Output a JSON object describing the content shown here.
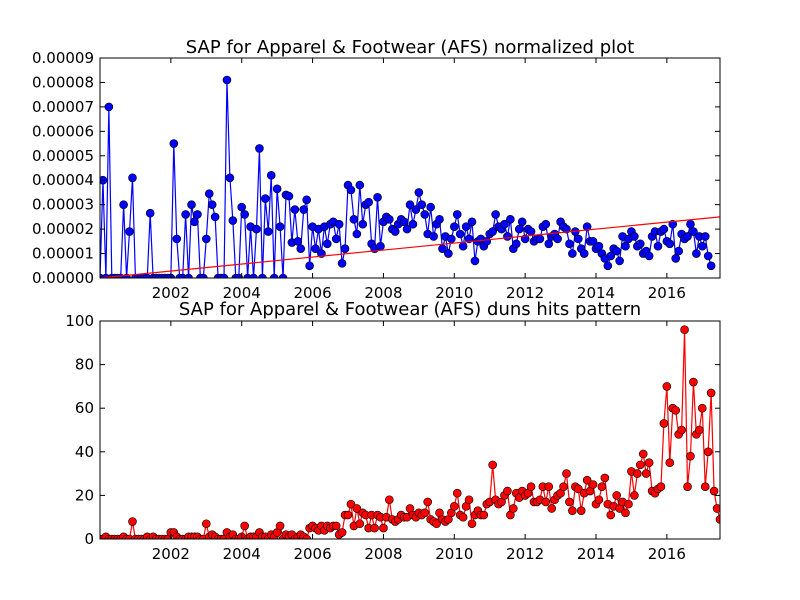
{
  "chart_data": [
    {
      "type": "line",
      "title": "SAP for Apparel & Footwear (AFS) normalized plot",
      "xlabel": "",
      "ylabel": "",
      "xlim": [
        2000.0,
        2017.5
      ],
      "ylim": [
        0.0,
        9e-05
      ],
      "x_ticks": [
        2002,
        2004,
        2006,
        2008,
        2010,
        2012,
        2014,
        2016
      ],
      "y_ticks": [
        0.0,
        1e-05,
        2e-05,
        3e-05,
        4e-05,
        5e-05,
        6e-05,
        7e-05,
        8e-05,
        9e-05
      ],
      "y_tick_labels": [
        "0.00000",
        "0.00001",
        "0.00002",
        "0.00003",
        "0.00004",
        "0.00005",
        "0.00006",
        "0.00007",
        "0.00008",
        "0.00009"
      ],
      "grid": false,
      "colors": {
        "series": "#0000ff",
        "trend": "#ff0000"
      },
      "series": [
        {
          "kind": "line+markers",
          "start": 2000.0,
          "step": 0.0833333,
          "values": [
            0.0,
            4e-05,
            0.0,
            7e-05,
            0.0,
            0.0,
            0.0,
            0.0,
            3e-05,
            0.0,
            1.9e-05,
            4.1e-05,
            0.0,
            0.0,
            0.0,
            0.0,
            0.0,
            2.65e-05,
            0.0,
            0.0,
            0.0,
            0.0,
            0.0,
            0.0,
            0.0,
            5.5e-05,
            1.6e-05,
            0.0,
            0.0,
            2.6e-05,
            0.0,
            3e-05,
            2.3e-05,
            2.6e-05,
            0.0,
            0.0,
            1.6e-05,
            3.45e-05,
            3e-05,
            2.5e-05,
            0.0,
            0.0,
            0.0,
            8.1e-05,
            4.1e-05,
            2.35e-05,
            0.0,
            0.0,
            2.9e-05,
            2.6e-05,
            0.0,
            2.1e-05,
            0.0,
            2e-05,
            5.3e-05,
            0.0,
            3.25e-05,
            1.9e-05,
            4.2e-05,
            0.0,
            3.65e-05,
            2.1e-05,
            0.0,
            3.4e-05,
            3.35e-05,
            1.45e-05,
            2.8e-05,
            1.5e-05,
            1.2e-05,
            2.8e-05,
            3.2e-05,
            5e-06,
            2.1e-05,
            1.2e-05,
            2e-05,
            1e-05,
            2.1e-05,
            1.4e-05,
            2.2e-05,
            2.3e-05,
            1.6e-05,
            2.2e-05,
            6e-06,
            1.2e-05,
            3.8e-05,
            3.6e-05,
            2.4e-05,
            1.8e-05,
            3.8e-05,
            2.2e-05,
            3e-05,
            3.1e-05,
            1.4e-05,
            1.2e-05,
            3.3e-05,
            1.3e-05,
            2.3e-05,
            2.5e-05,
            2.4e-05,
            2e-05,
            1.9e-05,
            2.2e-05,
            2.4e-05,
            2.3e-05,
            2e-05,
            3e-05,
            2.2e-05,
            2.8e-05,
            3.5e-05,
            3e-05,
            2.6e-05,
            1.8e-05,
            2.9e-05,
            1.7e-05,
            2.2e-05,
            2.4e-05,
            1.2e-05,
            1.7e-05,
            1e-05,
            1.6e-05,
            2.1e-05,
            2.6e-05,
            1.8e-05,
            1.3e-05,
            2.1e-05,
            1.6e-05,
            2.3e-05,
            7e-06,
            1.5e-05,
            1.6e-05,
            1.3e-05,
            1.5e-05,
            1.8e-05,
            1.9e-05,
            2.6e-05,
            2.1e-05,
            2e-05,
            2.2e-05,
            1.7e-05,
            2.4e-05,
            1.2e-05,
            1.4e-05,
            2e-05,
            2.3e-05,
            1.6e-05,
            2e-05,
            1.9e-05,
            1.5e-05,
            1.6e-05,
            1.6e-05,
            2.1e-05,
            2.2e-05,
            1.4e-05,
            1.7e-05,
            1.8e-05,
            1.6e-05,
            2.3e-05,
            2.1e-05,
            2e-05,
            1.4e-05,
            1e-05,
            1.9e-05,
            1.6e-05,
            1.2e-05,
            1e-05,
            2.1e-05,
            1.5e-05,
            1.5e-05,
            1.2e-05,
            1.3e-05,
            1e-05,
            8e-06,
            5e-06,
            9e-06,
            1.2e-05,
            1.1e-05,
            7e-06,
            1.7e-05,
            1.3e-05,
            1.6e-05,
            1.9e-05,
            1.7e-05,
            1.3e-05,
            1.4e-05,
            1e-05,
            1.1e-05,
            9e-06,
            1.7e-05,
            1.9e-05,
            1.3e-05,
            1.9e-05,
            2e-05,
            1.5e-05,
            1.4e-05,
            2.2e-05,
            8e-06,
            1.1e-05,
            1.8e-05,
            1.6e-05,
            1.7e-05,
            2.2e-05,
            1.9e-05,
            1e-05,
            1.7e-05,
            1.3e-05,
            1.7e-05,
            9e-06,
            5e-06
          ]
        },
        {
          "kind": "trend-line",
          "x": [
            2000.0,
            2017.5
          ],
          "values": [
            0.0,
            2.5e-05
          ]
        }
      ]
    },
    {
      "type": "line",
      "title": "SAP for Apparel & Footwear (AFS) duns hits pattern",
      "xlabel": "",
      "ylabel": "",
      "xlim": [
        2000.0,
        2017.5
      ],
      "ylim": [
        0,
        100
      ],
      "x_ticks": [
        2002,
        2004,
        2006,
        2008,
        2010,
        2012,
        2014,
        2016
      ],
      "y_ticks": [
        0,
        20,
        40,
        60,
        80,
        100
      ],
      "y_tick_labels": [
        "0",
        "20",
        "40",
        "60",
        "80",
        "100"
      ],
      "grid": false,
      "colors": {
        "series": "#ff0000"
      },
      "series": [
        {
          "kind": "line+markers",
          "start": 2000.0,
          "step": 0.0833333,
          "values": [
            0,
            0,
            1,
            0,
            0,
            0,
            0,
            0,
            1,
            0,
            0,
            8,
            0,
            0,
            0,
            0,
            1,
            0,
            1,
            0,
            0,
            0,
            0,
            0,
            3,
            3,
            1,
            0,
            0,
            0,
            1,
            1,
            1,
            1,
            0,
            0,
            7,
            1,
            2,
            1,
            0,
            0,
            0,
            3,
            1,
            2,
            0,
            0,
            1,
            6,
            0,
            1,
            1,
            1,
            3,
            1,
            1,
            0,
            2,
            1,
            3,
            6,
            0,
            2,
            1,
            2,
            0,
            1,
            2,
            1,
            0,
            5,
            6,
            5,
            4,
            6,
            4,
            6,
            5,
            6,
            6,
            2,
            3,
            11,
            11,
            16,
            6,
            14,
            7,
            12,
            11,
            5,
            11,
            5,
            11,
            10,
            5,
            10,
            18,
            9,
            8,
            9,
            11,
            10,
            10,
            14,
            11,
            10,
            12,
            11,
            12,
            17,
            9,
            8,
            7,
            12,
            9,
            8,
            9,
            12,
            15,
            21,
            11,
            10,
            15,
            18,
            7,
            11,
            13,
            11,
            11,
            16,
            17,
            34,
            18,
            16,
            17,
            20,
            22,
            11,
            14,
            21,
            19,
            22,
            20,
            21,
            24,
            17,
            17,
            18,
            24,
            17,
            24,
            14,
            18,
            20,
            21,
            24,
            30,
            17,
            13,
            24,
            23,
            13,
            21,
            27,
            22,
            25,
            16,
            18,
            24,
            28,
            16,
            11,
            15,
            20,
            14,
            17,
            12,
            16,
            31,
            20,
            30,
            34,
            39,
            30,
            35,
            22,
            21,
            23,
            24,
            53,
            70,
            35,
            60,
            59,
            48,
            50,
            96,
            24,
            38,
            72,
            48,
            50,
            60,
            24,
            40,
            67,
            22,
            14,
            9
          ]
        }
      ]
    }
  ]
}
